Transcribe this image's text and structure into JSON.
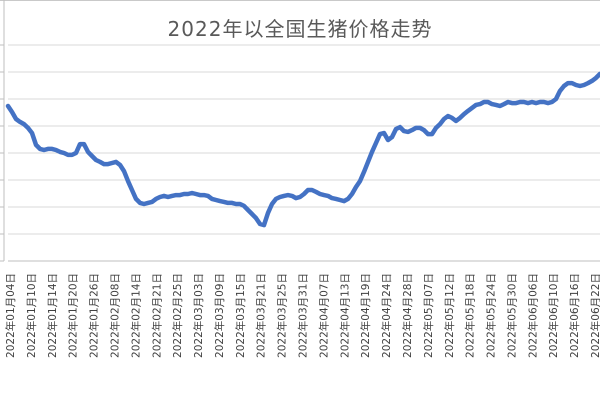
{
  "chart": {
    "title": "2022年以全国生猪价格走势"
  },
  "chart_data": {
    "type": "line",
    "title": "2022年以全国生猪价格走势",
    "xlabel": "",
    "ylabel": "",
    "legend": "none",
    "grid": true,
    "y_axis": {
      "labels_visible": false,
      "estimated_ylim": [
        10,
        18
      ],
      "gridline_step": 1,
      "gridline_count": 9
    },
    "x_tick_labels": [
      "2022年01月04日",
      "2022年01月10日",
      "2022年01月14日",
      "2022年01月20日",
      "2022年01月26日",
      "2022年02月08日",
      "2022年02月14日",
      "2022年02月21日",
      "2022年02月25日",
      "2022年03月03日",
      "2022年03月09日",
      "2022年03月15日",
      "2022年03月21日",
      "2022年03月25日",
      "2022年03月31日",
      "2022年04月07日",
      "2022年04月13日",
      "2022年04月19日",
      "2022年04月24日",
      "2022年04月28日",
      "2022年05月07日",
      "2022年05月12日",
      "2022年05月18日",
      "2022年05月24日",
      "2022年05月30日",
      "2022年06月06日",
      "2022年06月10日",
      "2022年06月16日",
      "2022年06月22日"
    ],
    "series": [
      {
        "name": "生猪价格",
        "values": [
          15.74,
          15.52,
          15.26,
          15.15,
          15.07,
          14.93,
          14.74,
          14.3,
          14.15,
          14.11,
          14.15,
          14.15,
          14.11,
          14.04,
          14.0,
          13.93,
          13.93,
          14.0,
          14.33,
          14.33,
          14.04,
          13.89,
          13.74,
          13.67,
          13.59,
          13.59,
          13.63,
          13.67,
          13.56,
          13.33,
          12.96,
          12.63,
          12.3,
          12.15,
          12.11,
          12.15,
          12.19,
          12.3,
          12.37,
          12.41,
          12.37,
          12.41,
          12.44,
          12.44,
          12.48,
          12.48,
          12.52,
          12.48,
          12.44,
          12.44,
          12.41,
          12.3,
          12.26,
          12.22,
          12.19,
          12.15,
          12.15,
          12.11,
          12.11,
          12.04,
          11.89,
          11.74,
          11.59,
          11.37,
          11.33,
          11.78,
          12.11,
          12.3,
          12.37,
          12.41,
          12.44,
          12.41,
          12.33,
          12.37,
          12.48,
          12.63,
          12.63,
          12.56,
          12.48,
          12.44,
          12.41,
          12.33,
          12.3,
          12.26,
          12.22,
          12.3,
          12.48,
          12.74,
          12.96,
          13.3,
          13.67,
          14.04,
          14.37,
          14.7,
          14.74,
          14.48,
          14.59,
          14.89,
          14.96,
          14.81,
          14.78,
          14.85,
          14.93,
          14.93,
          14.85,
          14.7,
          14.7,
          14.93,
          15.07,
          15.26,
          15.37,
          15.3,
          15.19,
          15.3,
          15.44,
          15.56,
          15.67,
          15.78,
          15.81,
          15.89,
          15.89,
          15.81,
          15.78,
          15.74,
          15.81,
          15.89,
          15.85,
          15.85,
          15.89,
          15.89,
          15.85,
          15.89,
          15.85,
          15.89,
          15.89,
          15.85,
          15.89,
          16.0,
          16.3,
          16.48,
          16.59,
          16.59,
          16.52,
          16.48,
          16.52,
          16.59,
          16.67,
          16.78,
          16.93
        ]
      }
    ]
  },
  "colors": {
    "line": "#4472C4",
    "gridline": "#D9D9D9",
    "axis": "#BFBFBF",
    "title_text": "#595959",
    "tick_text": "#404040",
    "background": "#FFFFFF"
  }
}
